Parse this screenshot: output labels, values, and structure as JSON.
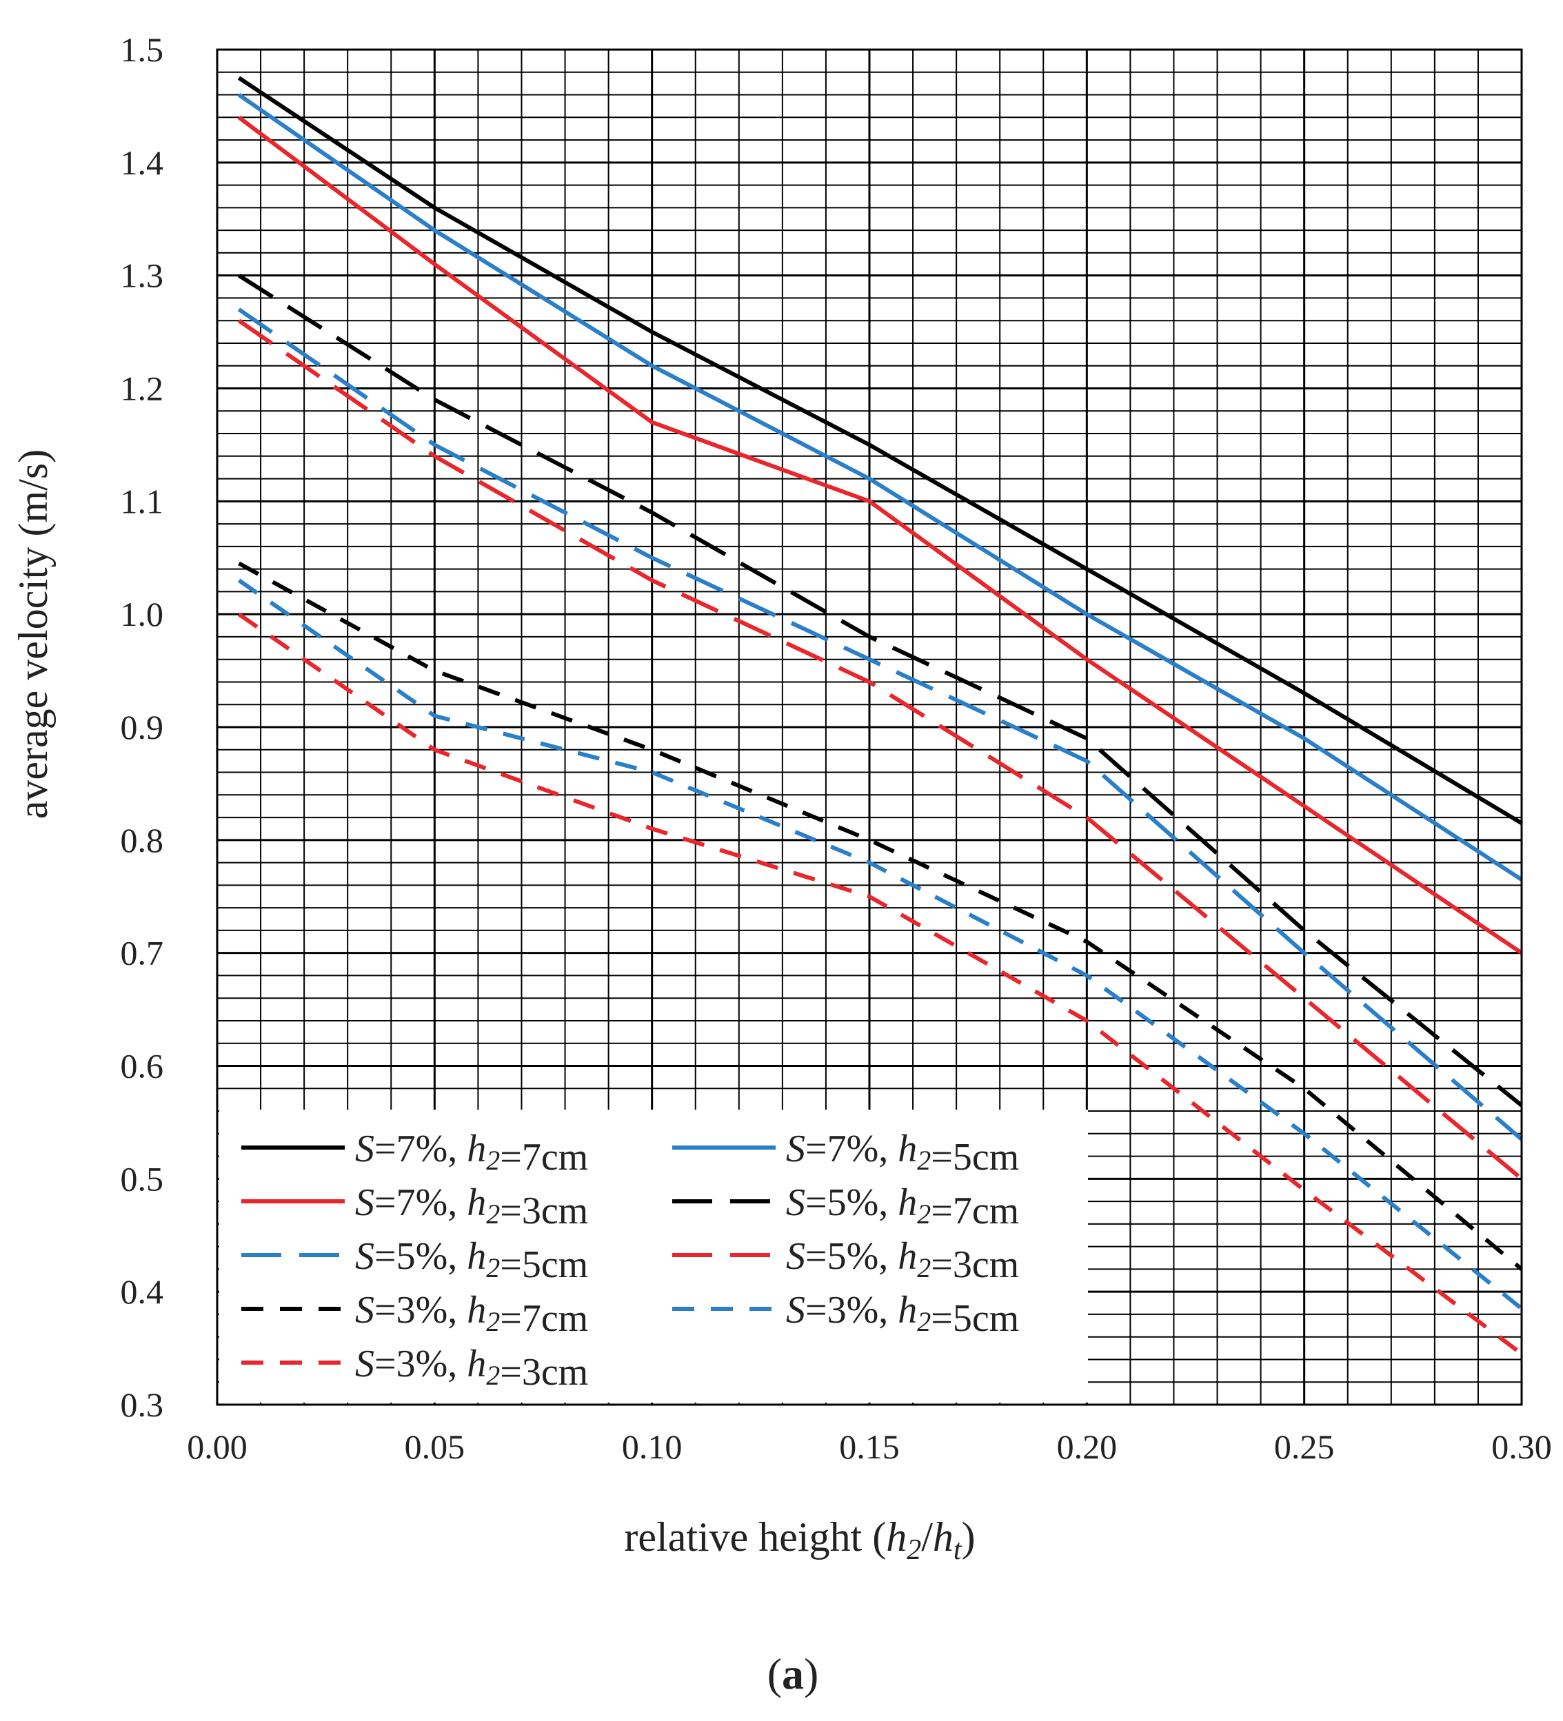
{
  "chart_data": {
    "type": "line",
    "panel_label": "(a)",
    "panel_letter": "a",
    "xlabel": {
      "prefix": "relative height (",
      "var1": "h",
      "sub1": "2",
      "slash": "/",
      "var2": "h",
      "sub2": "t",
      "suffix": ")"
    },
    "ylabel": "average velocity (m/s)",
    "xlim": [
      0.0,
      0.3
    ],
    "ylim": [
      0.3,
      1.5
    ],
    "x_ticks": [
      0.0,
      0.05,
      0.1,
      0.15,
      0.2,
      0.25,
      0.3
    ],
    "x_tick_labels": [
      "0.00",
      "0.05",
      "0.10",
      "0.15",
      "0.20",
      "0.25",
      "0.30"
    ],
    "y_ticks": [
      0.3,
      0.4,
      0.5,
      0.6,
      0.7,
      0.8,
      0.9,
      1.0,
      1.1,
      1.2,
      1.3,
      1.4,
      1.5
    ],
    "y_tick_labels": [
      "0.3",
      "0.4",
      "0.5",
      "0.6",
      "0.7",
      "0.8",
      "0.9",
      "1.0",
      "1.1",
      "1.2",
      "1.3",
      "1.4",
      "1.5"
    ],
    "grid": true,
    "grid_x_step": 0.01,
    "grid_y_step": 0.02,
    "legend_position": "bottom-left",
    "series": [
      {
        "name": "S=7%, h2=7cm",
        "slope": "7%",
        "h2": "7cm",
        "color": "#000000",
        "style": "solid",
        "x": [
          0.005,
          0.05,
          0.1,
          0.15,
          0.2,
          0.25,
          0.3
        ],
        "y": [
          1.475,
          1.36,
          1.25,
          1.15,
          1.04,
          0.93,
          0.815
        ]
      },
      {
        "name": "S=7%, h2=5cm",
        "slope": "7%",
        "h2": "5cm",
        "color": "#2a7fc9",
        "style": "solid",
        "x": [
          0.005,
          0.05,
          0.1,
          0.15,
          0.2,
          0.25,
          0.3
        ],
        "y": [
          1.46,
          1.34,
          1.22,
          1.12,
          1.0,
          0.89,
          0.765
        ]
      },
      {
        "name": "S=7%, h2=3cm",
        "slope": "7%",
        "h2": "3cm",
        "color": "#e8262b",
        "style": "solid",
        "x": [
          0.005,
          0.05,
          0.1,
          0.15,
          0.2,
          0.25,
          0.3
        ],
        "y": [
          1.44,
          1.31,
          1.17,
          1.1,
          0.96,
          0.83,
          0.7
        ]
      },
      {
        "name": "S=5%, h2=7cm",
        "slope": "5%",
        "h2": "7cm",
        "color": "#000000",
        "style": "dashed",
        "x": [
          0.005,
          0.05,
          0.1,
          0.15,
          0.2,
          0.25,
          0.3
        ],
        "y": [
          1.3,
          1.19,
          1.09,
          0.98,
          0.89,
          0.72,
          0.565
        ]
      },
      {
        "name": "S=5%, h2=5cm",
        "slope": "5%",
        "h2": "5cm",
        "color": "#2a7fc9",
        "style": "dashed",
        "x": [
          0.005,
          0.05,
          0.1,
          0.15,
          0.2,
          0.25,
          0.3
        ],
        "y": [
          1.27,
          1.15,
          1.05,
          0.96,
          0.87,
          0.7,
          0.535
        ]
      },
      {
        "name": "S=5%, h2=3cm",
        "slope": "5%",
        "h2": "3cm",
        "color": "#e8262b",
        "style": "dashed",
        "x": [
          0.005,
          0.05,
          0.1,
          0.15,
          0.2,
          0.25,
          0.3
        ],
        "y": [
          1.26,
          1.14,
          1.03,
          0.94,
          0.82,
          0.66,
          0.5
        ]
      },
      {
        "name": "S=3%, h2=7cm",
        "slope": "3%",
        "h2": "7cm",
        "color": "#000000",
        "style": "dotted",
        "x": [
          0.005,
          0.05,
          0.1,
          0.15,
          0.2,
          0.25,
          0.3
        ],
        "y": [
          1.045,
          0.95,
          0.88,
          0.8,
          0.71,
          0.58,
          0.42
        ]
      },
      {
        "name": "S=3%, h2=5cm",
        "slope": "3%",
        "h2": "5cm",
        "color": "#2a7fc9",
        "style": "dotted",
        "x": [
          0.005,
          0.05,
          0.1,
          0.15,
          0.2,
          0.25,
          0.3
        ],
        "y": [
          1.03,
          0.91,
          0.86,
          0.78,
          0.68,
          0.54,
          0.385
        ]
      },
      {
        "name": "S=3%, h2=3cm",
        "slope": "3%",
        "h2": "3cm",
        "color": "#e8262b",
        "style": "dotted",
        "x": [
          0.005,
          0.05,
          0.1,
          0.15,
          0.2,
          0.25,
          0.3
        ],
        "y": [
          1.0,
          0.88,
          0.81,
          0.75,
          0.64,
          0.49,
          0.345
        ]
      }
    ]
  }
}
